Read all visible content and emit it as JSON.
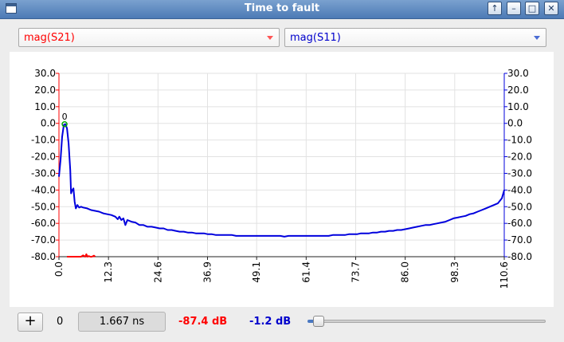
{
  "window": {
    "title": "Time to fault"
  },
  "controls": {
    "trace1_select": "mag(S21)",
    "trace2_select": "mag(S11)",
    "add_label": "+",
    "marker_index": "0",
    "time_value": "1.667 ns",
    "trace1_readout": "-87.4 dB",
    "trace2_readout": "-1.2 dB",
    "position_fraction": 0.015
  },
  "colors": {
    "trace1": "#ff0000",
    "trace2": "#0000dd",
    "marker": "#00aa00"
  },
  "chart_data": {
    "type": "line",
    "x_axis": {
      "ticks": [
        "0.0",
        "12.3",
        "24.6",
        "36.9",
        "49.1",
        "61.4",
        "73.7",
        "86.0",
        "98.3",
        "110.6"
      ],
      "range": [
        0,
        110.6
      ]
    },
    "y_axis_left": {
      "ticks": [
        "30.0",
        "20.0",
        "10.0",
        "0.0",
        "-10.0",
        "-20.0",
        "-30.0",
        "-40.0",
        "-50.0",
        "-60.0",
        "-70.0",
        "-80.0"
      ],
      "range": [
        -80,
        30
      ],
      "color": "#ff0000"
    },
    "y_axis_right": {
      "ticks": [
        "30.0",
        "20.0",
        "10.0",
        "0.0",
        "-10.0",
        "-20.0",
        "-30.0",
        "-40.0",
        "-50.0",
        "-60.0",
        "-70.0",
        "-80.0"
      ],
      "range": [
        -80,
        30
      ],
      "color": "#0000dd"
    },
    "grid": true,
    "marker": {
      "label": "0",
      "x": 1.4,
      "y": -0.5
    },
    "series": [
      {
        "color": "#0000dd",
        "points": [
          [
            0,
            -32
          ],
          [
            0.4,
            -22
          ],
          [
            0.8,
            -8
          ],
          [
            1.2,
            -1
          ],
          [
            1.6,
            -0.5
          ],
          [
            2.0,
            -3
          ],
          [
            2.4,
            -12
          ],
          [
            2.8,
            -28
          ],
          [
            3.0,
            -42
          ],
          [
            3.3,
            -40
          ],
          [
            3.6,
            -39
          ],
          [
            3.9,
            -47
          ],
          [
            4.2,
            -51
          ],
          [
            4.6,
            -49
          ],
          [
            5.0,
            -50.5
          ],
          [
            5.5,
            -50
          ],
          [
            6.0,
            -50.5
          ],
          [
            7,
            -51
          ],
          [
            8,
            -52
          ],
          [
            9,
            -52.5
          ],
          [
            10,
            -53
          ],
          [
            11,
            -54
          ],
          [
            12,
            -54.5
          ],
          [
            13,
            -55
          ],
          [
            14,
            -56
          ],
          [
            14.6,
            -57.5
          ],
          [
            15,
            -56
          ],
          [
            15.5,
            -58
          ],
          [
            16,
            -57
          ],
          [
            16.5,
            -61
          ],
          [
            17,
            -58
          ],
          [
            18,
            -59
          ],
          [
            19,
            -59.5
          ],
          [
            20,
            -61
          ],
          [
            21,
            -61
          ],
          [
            22,
            -62
          ],
          [
            23,
            -62
          ],
          [
            24,
            -62.5
          ],
          [
            25,
            -63
          ],
          [
            26,
            -63
          ],
          [
            27,
            -64
          ],
          [
            28,
            -64
          ],
          [
            29,
            -64.5
          ],
          [
            30,
            -65
          ],
          [
            31,
            -65
          ],
          [
            32,
            -65.5
          ],
          [
            33,
            -65.5
          ],
          [
            34,
            -66
          ],
          [
            35,
            -66
          ],
          [
            36,
            -66
          ],
          [
            37,
            -66.5
          ],
          [
            38,
            -66.5
          ],
          [
            39,
            -67
          ],
          [
            40,
            -67
          ],
          [
            41,
            -67
          ],
          [
            42,
            -67
          ],
          [
            43,
            -67
          ],
          [
            44,
            -67.5
          ],
          [
            45,
            -67.5
          ],
          [
            46,
            -67.5
          ],
          [
            47,
            -67.5
          ],
          [
            48,
            -67.5
          ],
          [
            49,
            -67.5
          ],
          [
            50,
            -67.5
          ],
          [
            51,
            -67.5
          ],
          [
            52,
            -67.5
          ],
          [
            53,
            -67.5
          ],
          [
            54,
            -67.5
          ],
          [
            55,
            -67.5
          ],
          [
            56,
            -68
          ],
          [
            57,
            -67.5
          ],
          [
            58,
            -67.5
          ],
          [
            59,
            -67.5
          ],
          [
            60,
            -67.5
          ],
          [
            61,
            -67.5
          ],
          [
            62,
            -67.5
          ],
          [
            63,
            -67.5
          ],
          [
            64,
            -67.5
          ],
          [
            65,
            -67.5
          ],
          [
            66,
            -67.5
          ],
          [
            67,
            -67.5
          ],
          [
            68,
            -67
          ],
          [
            69,
            -67
          ],
          [
            70,
            -67
          ],
          [
            71,
            -67
          ],
          [
            72,
            -66.5
          ],
          [
            73,
            -66.5
          ],
          [
            74,
            -66.5
          ],
          [
            75,
            -66
          ],
          [
            76,
            -66
          ],
          [
            77,
            -66
          ],
          [
            78,
            -65.5
          ],
          [
            79,
            -65.5
          ],
          [
            80,
            -65
          ],
          [
            81,
            -65
          ],
          [
            82,
            -64.5
          ],
          [
            83,
            -64.5
          ],
          [
            84,
            -64
          ],
          [
            85,
            -64
          ],
          [
            86,
            -63.5
          ],
          [
            87,
            -63
          ],
          [
            88,
            -62.5
          ],
          [
            89,
            -62
          ],
          [
            90,
            -61.5
          ],
          [
            91,
            -61
          ],
          [
            92,
            -61
          ],
          [
            93,
            -60.5
          ],
          [
            94,
            -60
          ],
          [
            95,
            -59.5
          ],
          [
            96,
            -59
          ],
          [
            97,
            -58
          ],
          [
            98,
            -57
          ],
          [
            99,
            -56.5
          ],
          [
            100,
            -56
          ],
          [
            101,
            -55.5
          ],
          [
            102,
            -54.5
          ],
          [
            103,
            -54
          ],
          [
            104,
            -53
          ],
          [
            105,
            -52
          ],
          [
            106,
            -51
          ],
          [
            107,
            -50
          ],
          [
            108,
            -49
          ],
          [
            109,
            -48
          ],
          [
            110,
            -45
          ],
          [
            110.6,
            -40
          ]
        ]
      },
      {
        "color": "#ff0000",
        "points": [
          [
            2,
            -80
          ],
          [
            3,
            -80
          ],
          [
            4,
            -80
          ],
          [
            5.5,
            -80
          ],
          [
            6.0,
            -79.2
          ],
          [
            6.5,
            -80
          ],
          [
            6.8,
            -78.5
          ],
          [
            7.1,
            -80
          ],
          [
            7.4,
            -79.6
          ],
          [
            7.8,
            -80
          ],
          [
            8.2,
            -80
          ],
          [
            8.7,
            -79.4
          ],
          [
            9.0,
            -80
          ]
        ]
      }
    ]
  }
}
